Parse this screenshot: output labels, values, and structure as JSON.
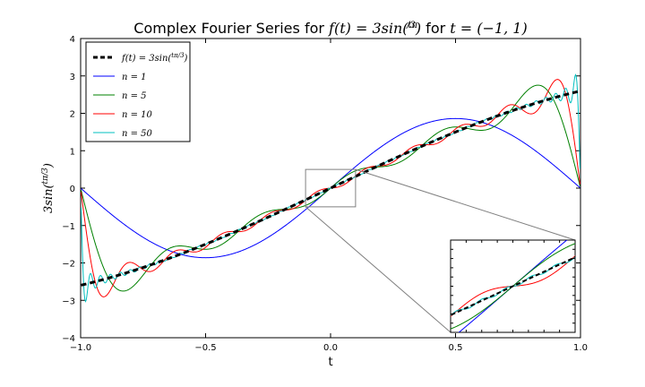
{
  "chart_data": {
    "type": "line",
    "title_prefix": "Complex Fourier Series for ",
    "title_math_f": "f(t) = 3sin(",
    "title_math_frac_num": "tπ",
    "title_math_frac_den": "3",
    "title_math_close": ")",
    "title_mid": " for ",
    "title_math_t": "t = (−1, 1)",
    "xlabel": "t",
    "ylabel_pre": "3sin(",
    "ylabel_frac_num": "tπ",
    "ylabel_frac_den": "3",
    "ylabel_post": ")",
    "xlim": [
      -1.0,
      1.0
    ],
    "ylim": [
      -4,
      4
    ],
    "xticks": [
      "−1.0",
      "−0.5",
      "0.0",
      "0.5",
      "1.0"
    ],
    "xtick_values": [
      -1.0,
      -0.5,
      0.0,
      0.5,
      1.0
    ],
    "yticks": [
      "4",
      "3",
      "2",
      "1",
      "0",
      "−1",
      "−2",
      "−3",
      "−4"
    ],
    "ytick_values": [
      4,
      3,
      2,
      1,
      0,
      -1,
      -2,
      -3,
      -4
    ],
    "grid": false,
    "legend_position": "upper-left",
    "function": "3*sin(t*pi/3)",
    "series": [
      {
        "name": "f(t) = 3sin(tπ/3)",
        "legend_pre": "f(t) = 3sin(",
        "legend_num": "tπ",
        "legend_den": "3",
        "legend_post": ")",
        "terms": "exact",
        "color": "#000000",
        "dashed": true
      },
      {
        "name": "n = 1",
        "legend_pre": "n = 1",
        "terms": 1,
        "color": "#0000ff",
        "dashed": false
      },
      {
        "name": "n = 5",
        "legend_pre": "n = 5",
        "terms": 5,
        "color": "#008000",
        "dashed": false
      },
      {
        "name": "n = 10",
        "legend_pre": "n = 10",
        "terms": 10,
        "color": "#ff0000",
        "dashed": false
      },
      {
        "name": "n = 50",
        "legend_pre": "n = 50",
        "terms": 50,
        "color": "#00bfbf",
        "dashed": false
      }
    ],
    "inset": {
      "zoom_xlim": [
        -0.1,
        0.1
      ],
      "zoom_ylim": [
        -0.5,
        0.5
      ]
    }
  }
}
